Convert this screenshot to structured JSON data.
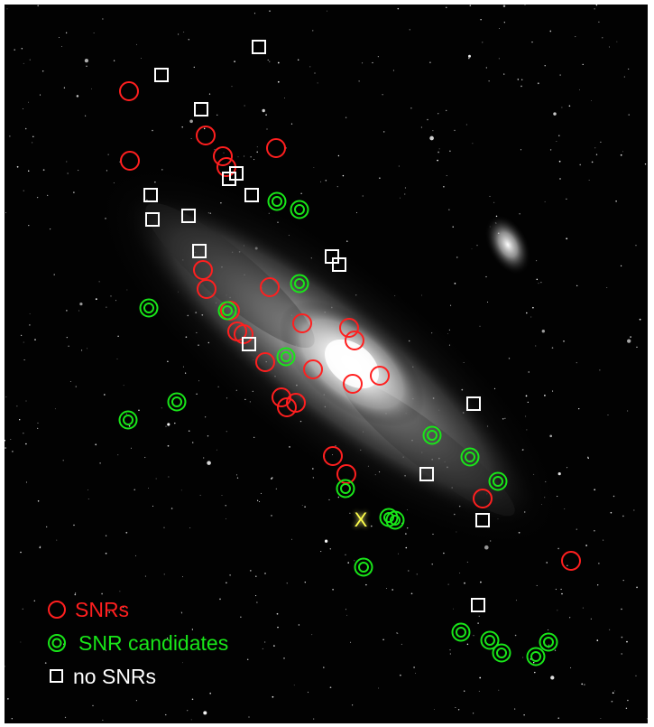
{
  "legend": {
    "snr_label": "SNRs",
    "candidate_label": "SNR candidates",
    "no_snr_label": "no SNRs"
  },
  "colors": {
    "snr": "#ff1f1f",
    "candidate": "#19e619",
    "no_snr": "#ffffff",
    "marker_x": "#ffff4a",
    "background": "#020202"
  },
  "marker_symbol": "X",
  "icons": {
    "snr": "open-circle-icon",
    "candidate": "double-circle-icon",
    "no_snr": "open-square-icon",
    "marker": "x-cross-icon"
  }
}
